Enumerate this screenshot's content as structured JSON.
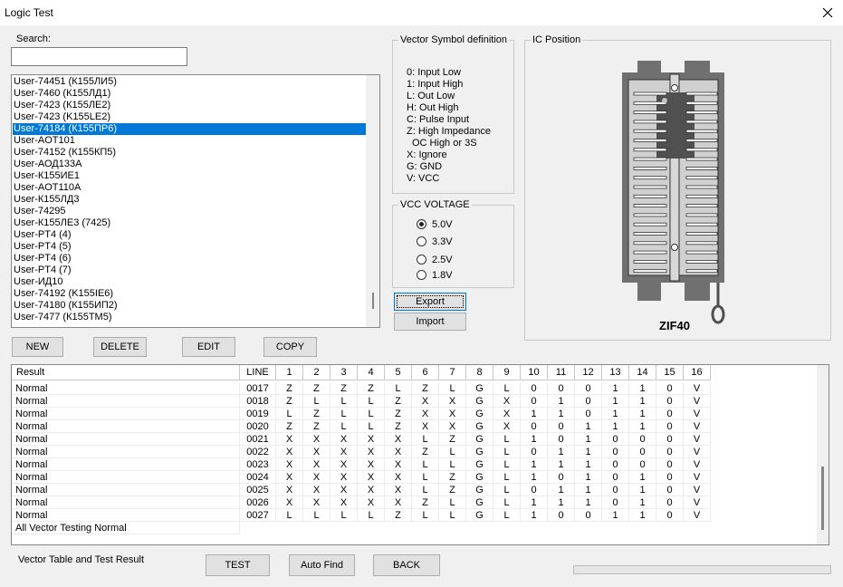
{
  "window": {
    "title": "Logic Test"
  },
  "search": {
    "label": "Search:"
  },
  "device_list": {
    "items": [
      "User-74451 (К155ЛИ5)",
      "User-7460 (К155ЛД1)",
      "User-7423 (К155ЛЕ2)",
      "User-7423 (K155LE2)",
      "User-74184 (К155ПР6)",
      "User-AOT101",
      "User-74152 (К155КП5)",
      "User-АОД133А",
      "User-К155ИЕ1",
      "User-AOT110A",
      "User-К155ЛД3",
      "User-74295",
      "User-К155ЛЕ3 (7425)",
      "User-PT4 (4)",
      "User-PT4 (5)",
      "User-PT4 (6)",
      "User-PT4 (7)",
      "User-ИД10",
      "User-74192 (K155IE6)",
      "User-74180 (К155ИП2)",
      "User-7477 (К155ТМ5)"
    ],
    "selected": 4
  },
  "list_buttons": [
    "NEW",
    "DELETE",
    "EDIT",
    "COPY"
  ],
  "vector_symbols": {
    "title": "Vector Symbol definition",
    "lines": [
      "0: Input Low",
      "1: Input High",
      "L: Out Low",
      "H: Out High",
      "C: Pulse Input",
      "Z: High Impedance",
      "OC High or 3S",
      "X: Ignore",
      "G: GND",
      "V: VCC"
    ]
  },
  "vcc_voltage": {
    "title": "VCC VOLTAGE",
    "options": [
      "5.0V",
      "3.3V",
      "2.5V",
      "1.8V"
    ],
    "selected": 0
  },
  "file_buttons": [
    "Export",
    "Import"
  ],
  "ic_position": {
    "title": "IC Position",
    "socket": "ZIF40"
  },
  "result_table": {
    "columns": [
      "Result",
      "LINE",
      "1",
      "2",
      "3",
      "4",
      "5",
      "6",
      "7",
      "8",
      "9",
      "10",
      "11",
      "12",
      "13",
      "14",
      "15",
      "16"
    ],
    "rows": [
      [
        "Normal",
        "0017",
        "Z",
        "Z",
        "Z",
        "Z",
        "L",
        "Z",
        "L",
        "G",
        "L",
        "0",
        "0",
        "0",
        "1",
        "1",
        "0",
        "V"
      ],
      [
        "Normal",
        "0018",
        "Z",
        "L",
        "L",
        "L",
        "Z",
        "X",
        "X",
        "G",
        "X",
        "0",
        "1",
        "0",
        "1",
        "1",
        "0",
        "V"
      ],
      [
        "Normal",
        "0019",
        "L",
        "Z",
        "L",
        "L",
        "Z",
        "X",
        "X",
        "G",
        "X",
        "1",
        "1",
        "0",
        "1",
        "1",
        "0",
        "V"
      ],
      [
        "Normal",
        "0020",
        "Z",
        "Z",
        "L",
        "L",
        "Z",
        "X",
        "X",
        "G",
        "X",
        "0",
        "0",
        "1",
        "1",
        "1",
        "0",
        "V"
      ],
      [
        "Normal",
        "0021",
        "X",
        "X",
        "X",
        "X",
        "X",
        "L",
        "Z",
        "G",
        "L",
        "1",
        "0",
        "1",
        "0",
        "0",
        "0",
        "V"
      ],
      [
        "Normal",
        "0022",
        "X",
        "X",
        "X",
        "X",
        "X",
        "Z",
        "L",
        "G",
        "L",
        "0",
        "1",
        "1",
        "0",
        "0",
        "0",
        "V"
      ],
      [
        "Normal",
        "0023",
        "X",
        "X",
        "X",
        "X",
        "X",
        "L",
        "L",
        "G",
        "L",
        "1",
        "1",
        "1",
        "0",
        "0",
        "0",
        "V"
      ],
      [
        "Normal",
        "0024",
        "X",
        "X",
        "X",
        "X",
        "X",
        "L",
        "Z",
        "G",
        "L",
        "1",
        "0",
        "1",
        "0",
        "1",
        "0",
        "V"
      ],
      [
        "Normal",
        "0025",
        "X",
        "X",
        "X",
        "X",
        "X",
        "L",
        "Z",
        "G",
        "L",
        "0",
        "1",
        "1",
        "0",
        "1",
        "0",
        "V"
      ],
      [
        "Normal",
        "0026",
        "X",
        "X",
        "X",
        "X",
        "X",
        "Z",
        "L",
        "G",
        "L",
        "1",
        "1",
        "1",
        "0",
        "1",
        "0",
        "V"
      ],
      [
        "Normal",
        "0027",
        "L",
        "L",
        "L",
        "L",
        "Z",
        "L",
        "L",
        "G",
        "L",
        "1",
        "0",
        "0",
        "1",
        "1",
        "0",
        "V"
      ]
    ],
    "summary": "All Vector Testing Normal"
  },
  "footer": {
    "label": "Vector Table and Test Result",
    "buttons": [
      "TEST",
      "Auto Find",
      "BACK"
    ]
  }
}
